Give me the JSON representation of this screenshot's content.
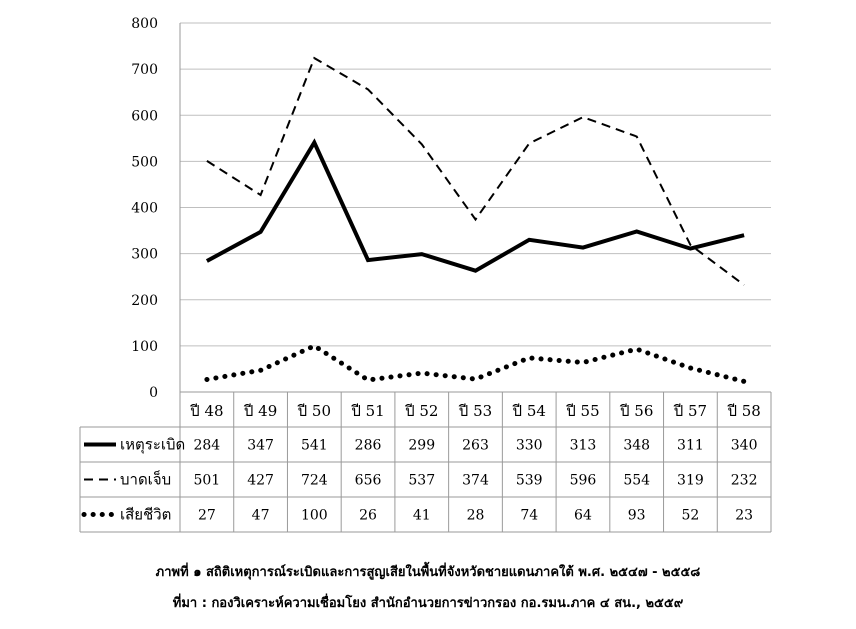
{
  "chart_data": {
    "type": "line",
    "categories": [
      "ปี 48",
      "ปี 49",
      "ปี 50",
      "ปี 51",
      "ปี 52",
      "ปี 53",
      "ปี 54",
      "ปี 55",
      "ปี 56",
      "ปี 57",
      "ปี 58"
    ],
    "ylim": [
      0,
      800
    ],
    "yticks": [
      0,
      100,
      200,
      300,
      400,
      500,
      600,
      700,
      800
    ],
    "grid": true,
    "series": [
      {
        "name": "เหตุระเบิด",
        "style": "solid",
        "values": [
          284,
          347,
          541,
          286,
          299,
          263,
          330,
          313,
          348,
          311,
          340
        ]
      },
      {
        "name": "บาดเจ็บ",
        "style": "dashed",
        "values": [
          501,
          427,
          724,
          656,
          537,
          374,
          539,
          596,
          554,
          319,
          232
        ]
      },
      {
        "name": "เสียชีวิต",
        "style": "dotted",
        "values": [
          27,
          47,
          100,
          26,
          41,
          28,
          74,
          64,
          93,
          52,
          23
        ]
      }
    ],
    "data_table": true,
    "colors": {
      "line": "#000000",
      "grid": "#bfbfbf",
      "border": "#9a9a9a"
    }
  },
  "caption": {
    "line1": "ภาพที่ ๑ สถิติเหตุการณ์ระเบิดและการสูญเสียในพื้นที่จังหวัดชายแดนภาคใต้ พ.ศ. ๒๕๔๗ - ๒๕๕๘",
    "line2": "ที่มา : กองวิเคราะห์ความเชื่อมโยง สำนักอำนวยการข่าวกรอง กอ.รมน.ภาค ๔ สน., ๒๕๕๙"
  }
}
